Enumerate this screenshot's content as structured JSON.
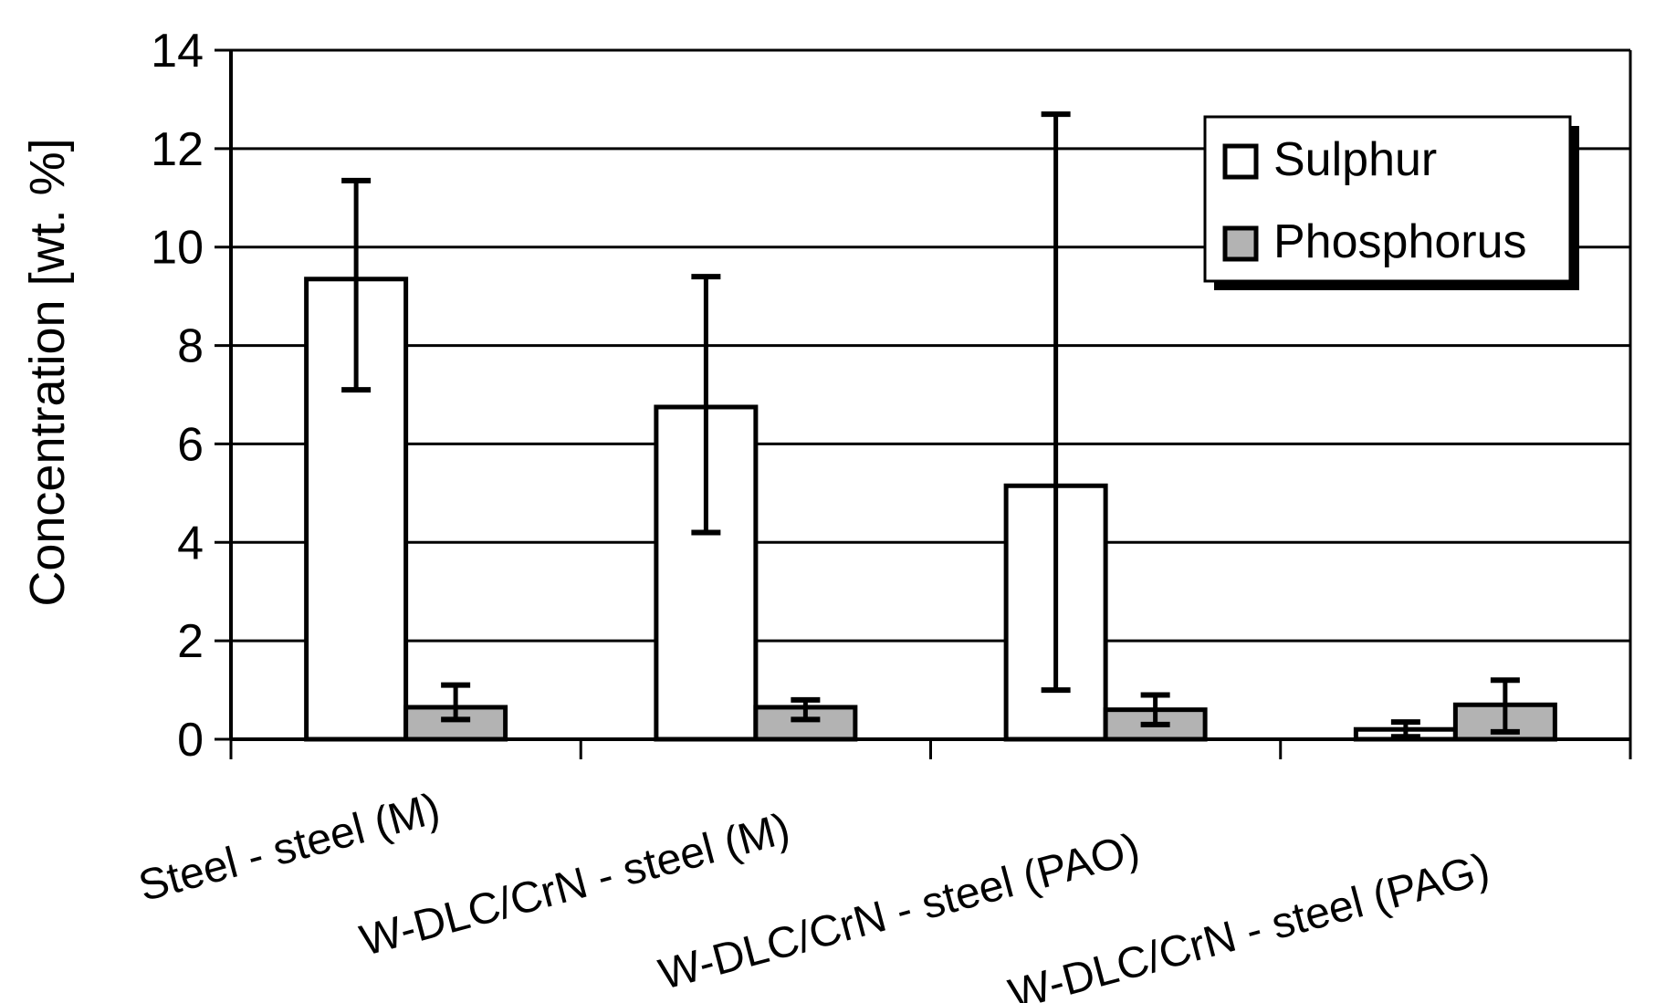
{
  "chart_data": {
    "type": "bar",
    "title": "",
    "xlabel": "",
    "ylabel": "Concentration [wt. %]",
    "ylim": [
      0,
      14
    ],
    "yticks": [
      0,
      2,
      4,
      6,
      8,
      10,
      12,
      14
    ],
    "grid": true,
    "legend_position": "top-right",
    "categories": [
      "Steel - steel (M)",
      "W-DLC/CrN - steel (M)",
      "W-DLC/CrN - steel (PAO)",
      "W-DLC/CrN - steel (PAG)"
    ],
    "series": [
      {
        "name": "Sulphur",
        "color": "#ffffff",
        "values": [
          9.35,
          6.75,
          5.15,
          0.2
        ],
        "error_low": [
          7.1,
          4.2,
          1.0,
          0.05
        ],
        "error_high": [
          11.35,
          9.4,
          12.7,
          0.35
        ]
      },
      {
        "name": "Phosphorus",
        "color": "#b3b3b3",
        "values": [
          0.65,
          0.65,
          0.6,
          0.7
        ],
        "error_low": [
          0.4,
          0.4,
          0.3,
          0.15
        ],
        "error_high": [
          1.1,
          0.8,
          0.9,
          1.2
        ]
      }
    ]
  }
}
